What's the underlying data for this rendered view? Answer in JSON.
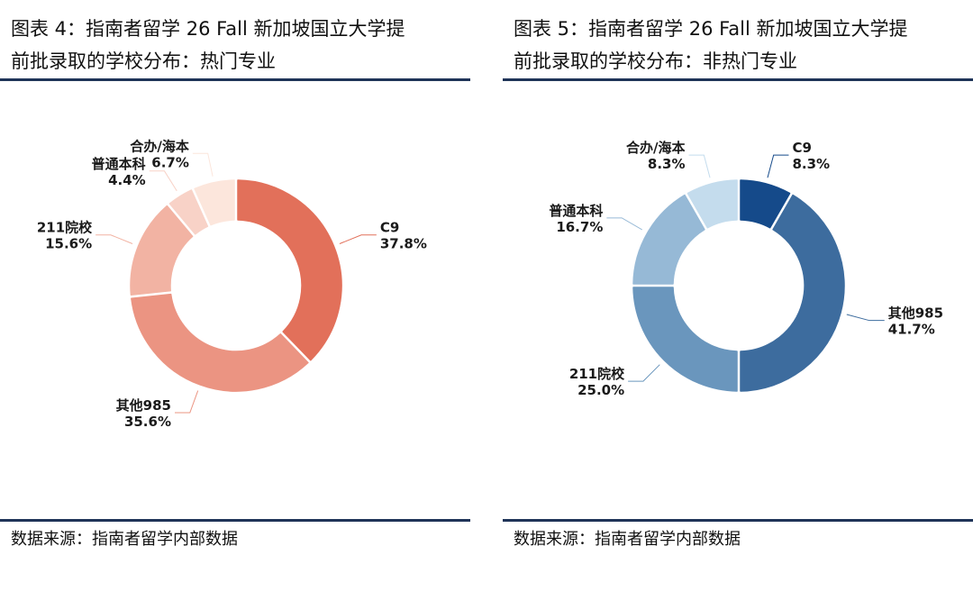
{
  "panels": [
    {
      "title_line1": "图表 4：指南者留学 26 Fall 新加坡国立大学提",
      "title_line2": "前批录取的学校分布：热门专业",
      "source_label": "数据来源：",
      "source_text": "指南者留学内部数据"
    },
    {
      "title_line1": "图表 5：指南者留学 26 Fall 新加坡国立大学提",
      "title_line2": "前批录取的学校分布：非热门专业",
      "source_label": "数据来源：",
      "source_text": "指南者留学内部数据"
    }
  ],
  "chart_data": [
    {
      "type": "pie",
      "variant": "donut",
      "title": "",
      "categories": [
        "C9",
        "其他985",
        "211院校",
        "普通本科",
        "合办/海本"
      ],
      "values": [
        37.8,
        35.6,
        15.6,
        4.4,
        6.7
      ],
      "value_labels": [
        "37.8%",
        "35.6%",
        "15.6%",
        "4.4%",
        "6.7%"
      ],
      "unit": "%",
      "colors": [
        "#e2705a",
        "#eb9482",
        "#f2b3a3",
        "#f8d2c7",
        "#fce6dc"
      ],
      "start_angle_deg": 0,
      "direction": "clockwise",
      "legend": "none"
    },
    {
      "type": "pie",
      "variant": "donut",
      "title": "",
      "categories": [
        "C9",
        "其他985",
        "211院校",
        "普通本科",
        "合办/海本"
      ],
      "values": [
        8.3,
        41.7,
        25.0,
        16.7,
        8.3
      ],
      "value_labels": [
        "8.3%",
        "41.7%",
        "25.0%",
        "16.7%",
        "8.3%"
      ],
      "unit": "%",
      "colors": [
        "#154a8a",
        "#3d6c9e",
        "#6a96bd",
        "#96b9d6",
        "#c4dced"
      ],
      "start_angle_deg": 0,
      "direction": "clockwise",
      "legend": "none"
    }
  ]
}
